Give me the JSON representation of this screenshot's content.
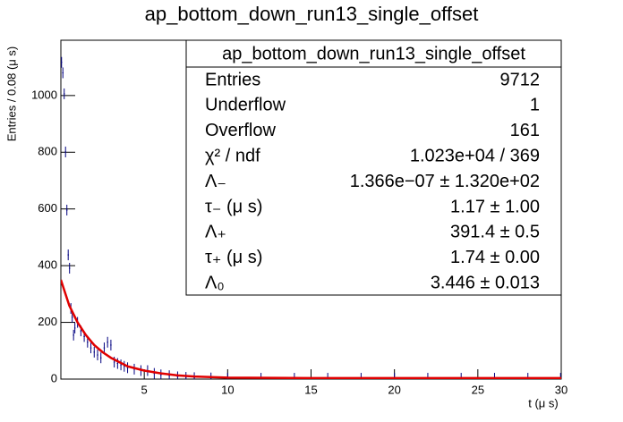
{
  "chart_data": {
    "type": "histogram-fit",
    "title": "ap_bottom_down_run13_single_offset",
    "x_label": "t (μ s)",
    "y_label": "Entries / 0.08 (μ s)",
    "xlim": [
      0,
      30
    ],
    "ylim": [
      0,
      1195
    ],
    "xticks": [
      5,
      10,
      15,
      20,
      25,
      30
    ],
    "yticks": [
      0,
      200,
      400,
      600,
      800,
      1000
    ],
    "bin_width": 0.08,
    "series": [
      {
        "name": "data",
        "color": "#000080",
        "x": [
          0.04,
          0.12,
          0.2,
          0.28,
          0.36,
          0.44,
          0.52,
          0.6,
          0.68,
          0.76,
          0.84,
          1.0,
          1.2,
          1.4,
          1.6,
          1.8,
          2.0,
          2.2,
          2.4,
          2.6,
          2.8,
          3.0,
          3.2,
          3.4,
          3.6,
          3.8,
          4.0,
          4.4,
          4.8,
          5.2,
          5.6,
          6.0,
          6.5,
          7.0,
          7.5,
          8.0,
          9.0,
          10.0,
          12.0,
          14.0,
          16.0,
          18.0,
          20.0,
          22.0,
          24.0,
          26.0,
          28.0,
          29.96
        ],
        "values": [
          1117,
          1080,
          1006,
          801,
          596,
          438,
          391,
          249,
          218,
          155,
          180,
          200,
          170,
          150,
          130,
          110,
          95,
          85,
          75,
          110,
          130,
          120,
          60,
          55,
          50,
          45,
          40,
          35,
          30,
          30,
          20,
          15,
          12,
          8,
          6,
          5,
          4,
          3,
          3,
          3,
          3,
          3,
          3,
          3,
          3,
          3,
          3,
          3
        ]
      },
      {
        "name": "fit",
        "color": "#e00000",
        "x": [
          0,
          0.5,
          1,
          1.5,
          2,
          2.5,
          3,
          4,
          5,
          6,
          7,
          8,
          10,
          15,
          20,
          30
        ],
        "values": [
          350,
          260,
          200,
          155,
          120,
          95,
          75,
          45,
          30,
          20,
          13,
          9,
          5,
          3.6,
          3.4,
          3.4
        ]
      }
    ],
    "stats": {
      "title": "ap_bottom_down_run13_single_offset",
      "rows": [
        [
          "Entries",
          "9712"
        ],
        [
          "Underflow",
          "1"
        ],
        [
          "Overflow",
          "161"
        ],
        [
          "χ² / ndf",
          "1.023e+04 / 369"
        ],
        [
          "Λ₋",
          "1.366e−07 ± 1.320e+02"
        ],
        [
          "τ₋ (μ s)",
          "1.17  ± 1.00"
        ],
        [
          "Λ₊",
          "391.4  ± 0.5"
        ],
        [
          "τ₊ (μ s)",
          "1.74  ± 0.00"
        ],
        [
          "Λ₀",
          "3.446  ± 0.013"
        ]
      ]
    }
  }
}
